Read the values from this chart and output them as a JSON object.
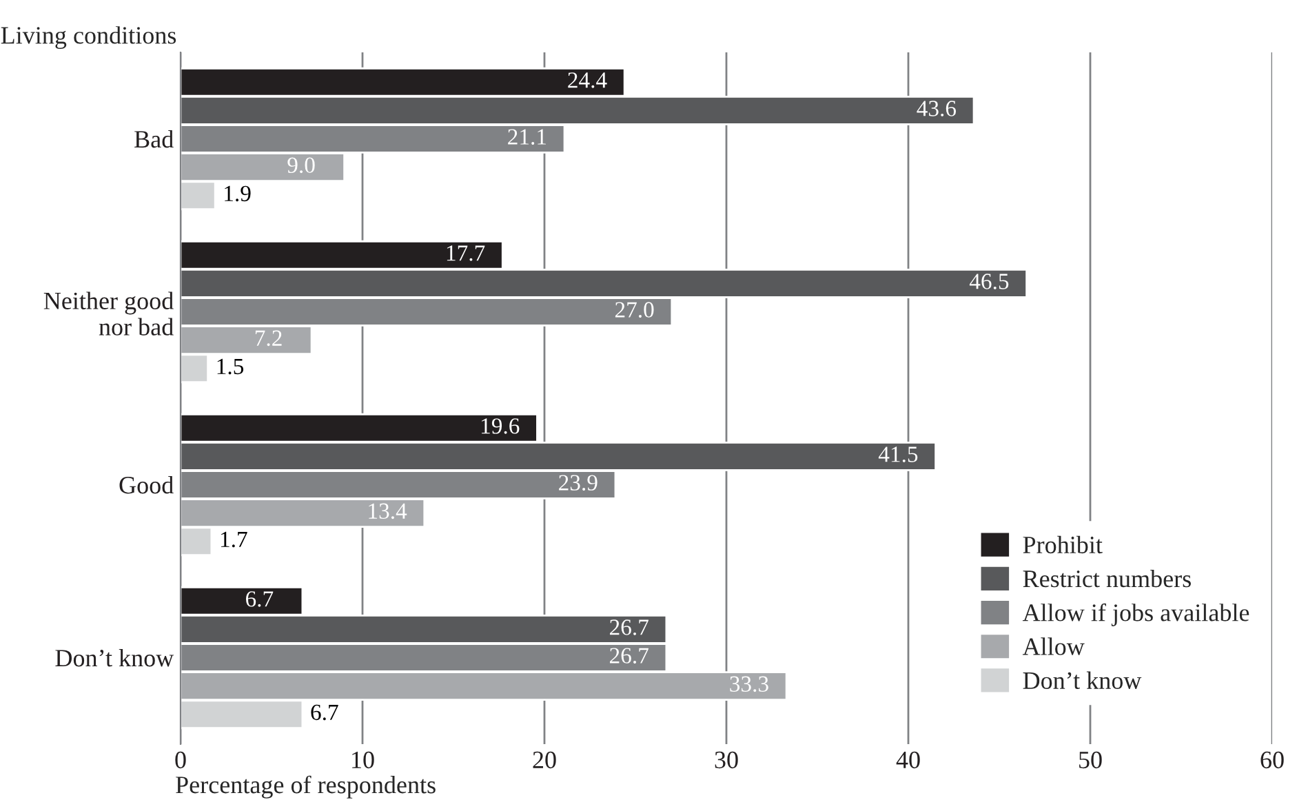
{
  "chart_data": {
    "type": "bar",
    "orientation": "horizontal",
    "ylabel": "Living conditions",
    "xlabel": "Percentage of respondents",
    "categories": [
      "Bad",
      "Neither good\nnor bad",
      "Good",
      "Don’t know"
    ],
    "series": [
      {
        "name": "Prohibit",
        "color": "#231f20",
        "values": [
          24.4,
          17.7,
          19.6,
          6.7
        ],
        "value_labels": [
          "24.4",
          "17.7",
          "19.6",
          "6.7"
        ]
      },
      {
        "name": "Restrict numbers",
        "color": "#58595b",
        "values": [
          43.6,
          46.5,
          41.5,
          26.7
        ],
        "value_labels": [
          "43.6",
          "46.5",
          "41.5",
          "26.7"
        ]
      },
      {
        "name": "Allow if jobs available",
        "color": "#808285",
        "values": [
          21.1,
          27.0,
          23.9,
          26.7
        ],
        "value_labels": [
          "21.1",
          "27.0",
          "23.9",
          "26.7"
        ]
      },
      {
        "name": "Allow",
        "color": "#a7a9ac",
        "values": [
          9.0,
          7.2,
          13.4,
          33.3
        ],
        "value_labels": [
          "9.0",
          "7.2",
          "13.4",
          "33.3"
        ]
      },
      {
        "name": "Don’t know",
        "color": "#d1d3d4",
        "values": [
          1.9,
          1.5,
          1.7,
          6.7
        ],
        "value_labels": [
          "1.9",
          "1.5",
          "1.7",
          "6.7"
        ]
      }
    ],
    "xlim": [
      0,
      60
    ],
    "xticks": [
      0,
      10,
      20,
      30,
      40,
      50,
      60
    ],
    "grid": "x",
    "legend": "bottom right"
  }
}
